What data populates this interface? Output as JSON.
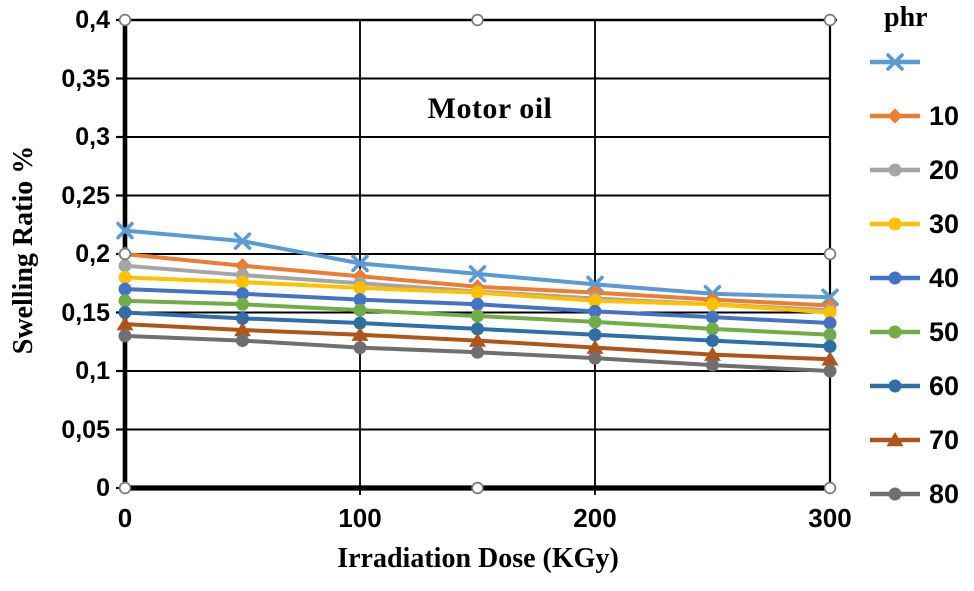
{
  "chart_data": {
    "type": "line",
    "title": "Motor oil",
    "xlabel": "Irradiation Dose (KGy)",
    "ylabel": "Swelling Ratio %",
    "legend_title": "phr",
    "legend_position": "right",
    "x": [
      0,
      50,
      100,
      150,
      200,
      250,
      300
    ],
    "xlim": [
      0,
      300
    ],
    "ylim": [
      0,
      0.4
    ],
    "x_ticks": [
      0,
      100,
      200,
      300
    ],
    "x_tick_labels": [
      "0",
      "100",
      "200",
      "300"
    ],
    "y_ticks": [
      0,
      0.05,
      0.1,
      0.15,
      0.2,
      0.25,
      0.3,
      0.35,
      0.4
    ],
    "y_tick_labels": [
      "0",
      "0,05",
      "0,1",
      "0,15",
      "0,2",
      "0,25",
      "0,3",
      "0,35",
      "0,4"
    ],
    "decimal_separator": ",",
    "grid": {
      "horizontal": true,
      "vertical_at": [
        100,
        200
      ]
    },
    "plot_area_selection_handles": true,
    "handle_color": "#7a7a7a",
    "series": [
      {
        "label": "",
        "marker": "x",
        "color": "#5B9BD5",
        "values": [
          0.22,
          0.211,
          0.192,
          0.183,
          0.174,
          0.166,
          0.163
        ]
      },
      {
        "label": "10",
        "marker": "diamond",
        "color": "#ED7D31",
        "values": [
          0.2,
          0.19,
          0.181,
          0.172,
          0.167,
          0.161,
          0.156
        ]
      },
      {
        "label": "20",
        "marker": "circle",
        "color": "#A5A5A5",
        "values": [
          0.19,
          0.182,
          0.175,
          0.168,
          0.162,
          0.157,
          0.152
        ]
      },
      {
        "label": "30",
        "marker": "circle",
        "color": "#FFC000",
        "values": [
          0.18,
          0.176,
          0.171,
          0.167,
          0.16,
          0.157,
          0.15
        ]
      },
      {
        "label": "40",
        "marker": "circle",
        "color": "#4472C4",
        "values": [
          0.17,
          0.166,
          0.161,
          0.157,
          0.151,
          0.146,
          0.141
        ]
      },
      {
        "label": "50",
        "marker": "circle",
        "color": "#70AD47",
        "values": [
          0.16,
          0.157,
          0.152,
          0.147,
          0.142,
          0.136,
          0.131
        ]
      },
      {
        "label": "60",
        "marker": "circle",
        "color": "#2E6FA8",
        "values": [
          0.15,
          0.145,
          0.141,
          0.136,
          0.131,
          0.126,
          0.121
        ]
      },
      {
        "label": "70",
        "marker": "triangle",
        "color": "#B0551A",
        "values": [
          0.14,
          0.135,
          0.131,
          0.126,
          0.12,
          0.114,
          0.11
        ]
      },
      {
        "label": "80",
        "marker": "circle",
        "color": "#6F6F6F",
        "values": [
          0.13,
          0.126,
          0.12,
          0.116,
          0.111,
          0.105,
          0.1
        ]
      }
    ]
  }
}
